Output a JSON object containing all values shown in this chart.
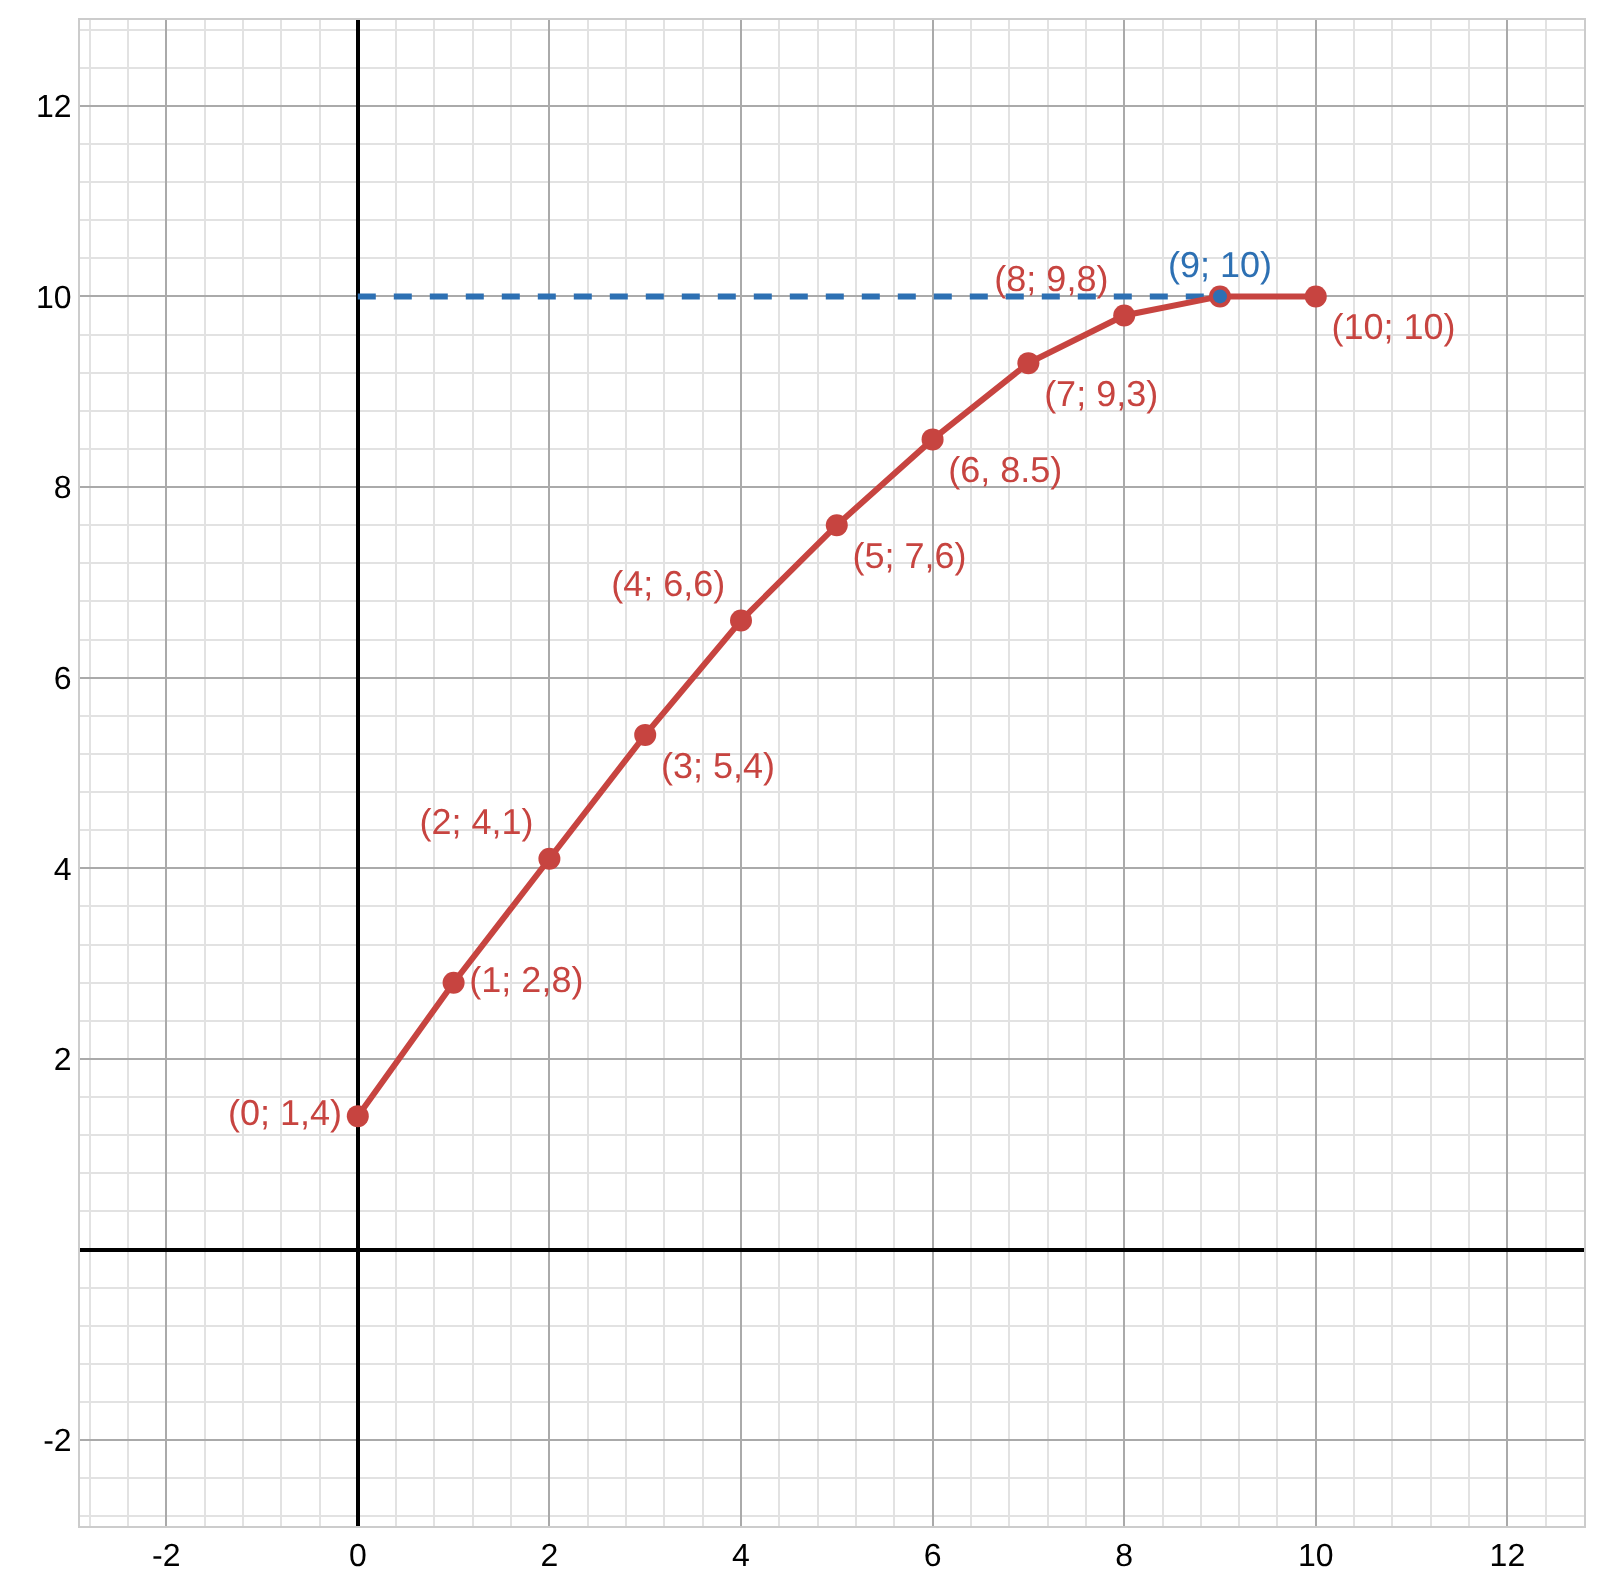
{
  "chart_data": {
    "type": "line",
    "xlim": [
      -2.9,
      12.8
    ],
    "ylim": [
      -2.9,
      12.9
    ],
    "xticks": [
      -2,
      0,
      2,
      4,
      6,
      8,
      10,
      12
    ],
    "yticks": [
      -2,
      2,
      4,
      6,
      8,
      10,
      12
    ],
    "grid": true,
    "series": [
      {
        "color": "#2d70b3",
        "line_style": "dashed",
        "marker": "none",
        "x": [
          0,
          9
        ],
        "values": [
          10,
          10
        ]
      },
      {
        "color": "#c74440",
        "line_style": "solid",
        "marker": "circle",
        "x": [
          0,
          1,
          2,
          3,
          4,
          5,
          6,
          7,
          8,
          9,
          10
        ],
        "values": [
          1.4,
          2.8,
          4.1,
          5.4,
          6.6,
          7.6,
          8.5,
          9.3,
          9.8,
          10,
          10
        ],
        "value_labels": [
          "(0; 1,4)",
          "(1; 2,8)",
          "(2; 4,1)",
          "(3; 5,4)",
          "(4; 6,6)",
          "(5; 7,6)",
          "(6, 8.5)",
          "(7; 9,3)",
          "(8; 9,8)",
          null,
          "(10; 10)"
        ]
      },
      {
        "type": "scatter",
        "color": "#2d70b3",
        "marker": "circle",
        "x": [
          9
        ],
        "values": [
          10
        ],
        "value_labels": [
          "(9; 10)"
        ]
      }
    ]
  }
}
